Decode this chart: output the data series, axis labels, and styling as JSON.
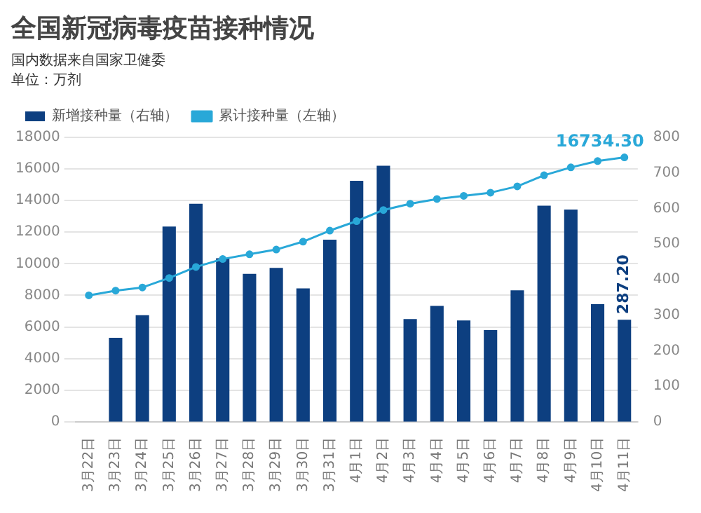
{
  "chart_data": {
    "type": "bar",
    "title": "全国新冠病毒疫苗接种情况",
    "subtitle": "国内数据来自国家卫健委",
    "annotations": [
      "单位：万剂"
    ],
    "categories": [
      "3月22日",
      "3月23日",
      "3月24日",
      "3月25日",
      "3月26日",
      "3月27日",
      "3月28日",
      "3月29日",
      "3月30日",
      "3月31日",
      "4月1日",
      "4月2日",
      "4月3日",
      "4月4日",
      "4月5日",
      "4月6日",
      "4月7日",
      "4月8日",
      "4月9日",
      "4月10日",
      "4月11日"
    ],
    "series": [
      {
        "name": "新增接种量（右轴）",
        "axis": "y2",
        "color": "#0d3f80",
        "values": [
          null,
          236,
          300,
          549,
          613,
          460,
          416,
          433,
          375,
          512,
          678,
          720,
          289,
          326,
          285,
          258,
          370,
          608,
          597,
          331,
          287.2
        ],
        "value_labels": [
          null,
          null,
          null,
          null,
          null,
          null,
          null,
          null,
          null,
          null,
          null,
          null,
          null,
          null,
          null,
          null,
          null,
          null,
          null,
          null,
          "287.20"
        ]
      },
      {
        "name": "累计接种量（左轴）",
        "type": "line",
        "color": "#29a8d8",
        "marker": "circle",
        "values": [
          8000,
          8300,
          8500,
          9100,
          9800,
          10300,
          10600,
          10900,
          11400,
          12100,
          12700,
          13400,
          13800,
          14100,
          14300,
          14500,
          14900,
          15600,
          16100,
          16500,
          16734.3
        ],
        "value_labels": [
          null,
          null,
          null,
          null,
          null,
          null,
          null,
          null,
          null,
          null,
          null,
          null,
          null,
          null,
          null,
          null,
          null,
          null,
          null,
          null,
          "16734.30"
        ]
      }
    ],
    "ylim": [
      0,
      18000
    ],
    "yticks": [
      0,
      2000,
      4000,
      6000,
      8000,
      10000,
      12000,
      14000,
      16000,
      18000
    ],
    "y2lim": [
      0,
      800
    ],
    "y2ticks": [
      0,
      100,
      200,
      300,
      400,
      500,
      600,
      700,
      800
    ],
    "grid": "y",
    "legend": "top left"
  }
}
